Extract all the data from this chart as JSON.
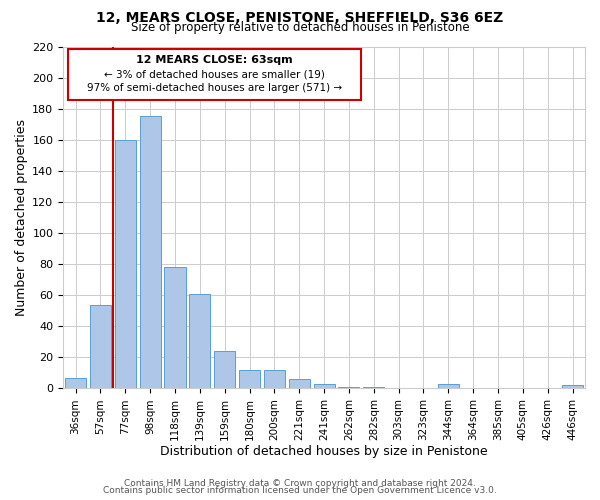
{
  "title": "12, MEARS CLOSE, PENISTONE, SHEFFIELD, S36 6EZ",
  "subtitle": "Size of property relative to detached houses in Penistone",
  "xlabel": "Distribution of detached houses by size in Penistone",
  "ylabel": "Number of detached properties",
  "bar_labels": [
    "36sqm",
    "57sqm",
    "77sqm",
    "98sqm",
    "118sqm",
    "139sqm",
    "159sqm",
    "180sqm",
    "200sqm",
    "221sqm",
    "241sqm",
    "262sqm",
    "282sqm",
    "303sqm",
    "323sqm",
    "344sqm",
    "364sqm",
    "385sqm",
    "405sqm",
    "426sqm",
    "446sqm"
  ],
  "bar_values": [
    7,
    54,
    160,
    175,
    78,
    61,
    24,
    12,
    12,
    6,
    3,
    1,
    1,
    0,
    0,
    3,
    0,
    0,
    0,
    0,
    2
  ],
  "bar_color": "#aec6e8",
  "bar_edge_color": "#5a9fd4",
  "vline_color": "#cc0000",
  "vline_x": 1.5,
  "annotation_title": "12 MEARS CLOSE: 63sqm",
  "annotation_line1": "← 3% of detached houses are smaller (19)",
  "annotation_line2": "97% of semi-detached houses are larger (571) →",
  "box_edge_color": "#cc0000",
  "ylim": [
    0,
    220
  ],
  "yticks": [
    0,
    20,
    40,
    60,
    80,
    100,
    120,
    140,
    160,
    180,
    200,
    220
  ],
  "footer1": "Contains HM Land Registry data © Crown copyright and database right 2024.",
  "footer2": "Contains public sector information licensed under the Open Government Licence v3.0.",
  "bg_color": "#ffffff",
  "grid_color": "#cccccc"
}
